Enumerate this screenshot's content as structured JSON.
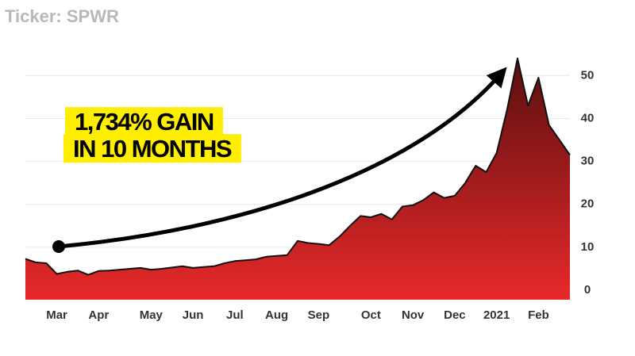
{
  "chart_data": {
    "type": "area",
    "title": "Ticker: SPWR",
    "annotations": [
      "1,734% GAIN",
      "IN 10 MONTHS"
    ],
    "categories": [
      null,
      null,
      null,
      "Mar",
      null,
      null,
      null,
      "Apr",
      null,
      null,
      null,
      null,
      "May",
      null,
      null,
      null,
      "Jun",
      null,
      null,
      null,
      "Jul",
      null,
      null,
      null,
      "Aug",
      null,
      null,
      null,
      "Sep",
      null,
      null,
      null,
      null,
      "Oct",
      null,
      null,
      null,
      "Nov",
      null,
      null,
      null,
      "Dec",
      null,
      null,
      null,
      "2021",
      null,
      null,
      null,
      "Feb",
      null,
      null,
      null
    ],
    "values": [
      7.3,
      6.5,
      6.3,
      3.8,
      4.3,
      4.6,
      3.6,
      4.5,
      4.6,
      4.8,
      5.0,
      5.2,
      4.8,
      5.0,
      5.3,
      5.6,
      5.2,
      5.4,
      5.6,
      6.3,
      6.8,
      7.0,
      7.2,
      7.8,
      8.0,
      8.2,
      11.5,
      11.0,
      10.8,
      10.5,
      12.5,
      15.0,
      17.3,
      17.0,
      17.8,
      16.5,
      19.5,
      19.8,
      21.0,
      22.8,
      21.5,
      22.0,
      25.0,
      29.0,
      27.5,
      32.0,
      42.0,
      54.0,
      43.0,
      49.5,
      38.5,
      35.0,
      31.5
    ],
    "color_top": "#5a0f0f",
    "color_bottom": "#e8292a",
    "ylim": [
      -2.2,
      54.3
    ],
    "yticks": [
      0,
      10,
      20,
      30,
      40,
      50
    ],
    "grid": true,
    "y_axis_side": "right"
  }
}
